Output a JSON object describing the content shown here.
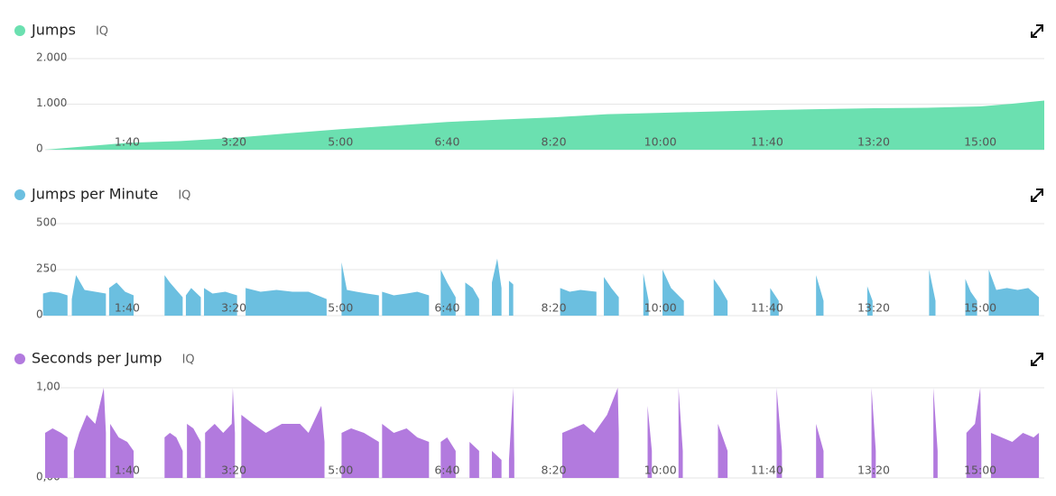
{
  "chart_data": [
    {
      "type": "area",
      "subtitle": "IQ",
      "x": [
        23,
        100,
        150,
        200,
        250,
        300,
        350,
        400,
        450,
        500,
        550,
        600,
        650,
        700,
        750,
        800,
        850,
        900,
        930,
        960
      ],
      "series": [
        {
          "name": "Jumps",
          "color": "#6be0b0",
          "values": [
            0,
            150,
            190,
            260,
            360,
            450,
            530,
            610,
            660,
            710,
            780,
            810,
            840,
            870,
            890,
            910,
            920,
            950,
            1010,
            1080
          ]
        }
      ],
      "xlim": [
        23,
        960
      ],
      "xticks": [
        {
          "value": 100,
          "label": "1:40"
        },
        {
          "value": 200,
          "label": "3:20"
        },
        {
          "value": 300,
          "label": "5:00"
        },
        {
          "value": 400,
          "label": "6:40"
        },
        {
          "value": 500,
          "label": "8:20"
        },
        {
          "value": 600,
          "label": "10:00"
        },
        {
          "value": 700,
          "label": "11:40"
        },
        {
          "value": 800,
          "label": "13:20"
        },
        {
          "value": 900,
          "label": "15:00"
        }
      ],
      "ylim": [
        0,
        2000
      ],
      "yticks": [
        0,
        {
          "value": 1000,
          "label": "1.000"
        },
        {
          "value": 2000,
          "label": "2.000"
        }
      ],
      "grid": true
    },
    {
      "type": "area",
      "subtitle": "IQ",
      "x": [
        21,
        28,
        36,
        44,
        46,
        48,
        52,
        60,
        70,
        80,
        81,
        83,
        90,
        98,
        106,
        120,
        135,
        140,
        146,
        152,
        153,
        155,
        160,
        169,
        170,
        172,
        180,
        192,
        203,
        207,
        211,
        225,
        240,
        255,
        270,
        287,
        294,
        301,
        306,
        315,
        325,
        336,
        337,
        339,
        350,
        362,
        372,
        383,
        388,
        394,
        400,
        408,
        412,
        417,
        424,
        430,
        436,
        442,
        447,
        451,
        454,
        458,
        462,
        480,
        506,
        515,
        525,
        540,
        544,
        547,
        554,
        561,
        570,
        584,
        589,
        595,
        602,
        610,
        622,
        630,
        650,
        656,
        663,
        680,
        703,
        711,
        725,
        746,
        753,
        770,
        794,
        799,
        825,
        852,
        858,
        870,
        886,
        891,
        897,
        902,
        908,
        915,
        925,
        935,
        945,
        955
      ],
      "series": [
        {
          "name": "Jumps per Minute",
          "color": "#6bbfe0",
          "values": [
            120,
            130,
            125,
            110,
            null,
            90,
            220,
            140,
            130,
            120,
            null,
            150,
            180,
            130,
            110,
            null,
            220,
            180,
            140,
            100,
            null,
            110,
            150,
            100,
            null,
            150,
            120,
            130,
            110,
            null,
            150,
            130,
            140,
            130,
            130,
            90,
            null,
            290,
            140,
            130,
            120,
            110,
            null,
            130,
            110,
            120,
            130,
            110,
            null,
            250,
            180,
            100,
            null,
            180,
            150,
            90,
            null,
            180,
            310,
            150,
            null,
            190,
            170,
            null,
            150,
            130,
            140,
            130,
            null,
            210,
            150,
            100,
            null,
            230,
            80,
            null,
            250,
            150,
            80,
            null,
            200,
            150,
            80,
            null,
            150,
            80,
            null,
            220,
            80,
            null,
            160,
            80,
            null,
            250,
            80,
            null,
            200,
            130,
            80,
            null,
            250,
            140,
            150,
            140,
            150,
            100
          ]
        }
      ],
      "xlim": [
        23,
        960
      ],
      "xticks": [
        {
          "value": 100,
          "label": "1:40"
        },
        {
          "value": 200,
          "label": "3:20"
        },
        {
          "value": 300,
          "label": "5:00"
        },
        {
          "value": 400,
          "label": "6:40"
        },
        {
          "value": 500,
          "label": "8:20"
        },
        {
          "value": 600,
          "label": "10:00"
        },
        {
          "value": 700,
          "label": "11:40"
        },
        {
          "value": 800,
          "label": "13:20"
        },
        {
          "value": 900,
          "label": "15:00"
        }
      ],
      "ylim": [
        0,
        500
      ],
      "yticks": [
        0,
        250,
        500
      ],
      "grid": true
    },
    {
      "type": "area",
      "subtitle": "IQ",
      "x": [
        23,
        30,
        38,
        44,
        46,
        50,
        55,
        62,
        70,
        78,
        80,
        81,
        84,
        92,
        100,
        106,
        120,
        135,
        140,
        146,
        152,
        154,
        156,
        162,
        169,
        171,
        173,
        182,
        190,
        198,
        199,
        201,
        204,
        207,
        218,
        230,
        245,
        262,
        270,
        282,
        285,
        294,
        301,
        310,
        322,
        336,
        337,
        339,
        350,
        362,
        372,
        383,
        388,
        394,
        400,
        408,
        420,
        421,
        430,
        440,
        442,
        451,
        455,
        458,
        462,
        463,
        485,
        508,
        518,
        528,
        538,
        550,
        560,
        561,
        575,
        588,
        592,
        615,
        617,
        621,
        650,
        654,
        663,
        700,
        709,
        714,
        740,
        746,
        753,
        795,
        798,
        802,
        850,
        856,
        860,
        870,
        887,
        895,
        900,
        901,
        906,
        910,
        920,
        930,
        940,
        950,
        955
      ],
      "series": [
        {
          "name": "Seconds per Jump",
          "color": "#b27ade",
          "values": [
            0.5,
            0.55,
            0.5,
            0.45,
            null,
            0.3,
            0.5,
            0.7,
            0.6,
            1.0,
            0.5,
            null,
            0.6,
            0.45,
            0.4,
            0.3,
            null,
            0.45,
            0.5,
            0.45,
            0.3,
            null,
            0.6,
            0.55,
            0.4,
            null,
            0.5,
            0.6,
            0.5,
            0.6,
            1.0,
            0.5,
            null,
            0.7,
            0.6,
            0.5,
            0.6,
            0.6,
            0.5,
            0.8,
            0.4,
            null,
            0.5,
            0.55,
            0.5,
            0.4,
            null,
            0.6,
            0.5,
            0.55,
            0.45,
            0.4,
            null,
            0.4,
            0.45,
            0.3,
            null,
            0.4,
            0.3,
            null,
            0.3,
            0.2,
            null,
            0.2,
            1.0,
            0.2,
            null,
            0.5,
            0.55,
            0.6,
            0.5,
            0.7,
            1.0,
            0.5,
            null,
            0.8,
            0.3,
            null,
            1.0,
            0.3,
            null,
            0.6,
            0.3,
            null,
            1.0,
            0.3,
            null,
            0.6,
            0.3,
            null,
            1.0,
            0.3,
            null,
            1.0,
            0.3,
            null,
            0.5,
            0.6,
            1.0,
            0.3,
            null,
            0.5,
            0.45,
            0.4,
            0.5,
            0.45,
            0.5
          ]
        }
      ],
      "xlim": [
        23,
        960
      ],
      "xticks": [
        {
          "value": 100,
          "label": "1:40"
        },
        {
          "value": 200,
          "label": "3:20"
        },
        {
          "value": 300,
          "label": "5:00"
        },
        {
          "value": 400,
          "label": "6:40"
        },
        {
          "value": 500,
          "label": "8:20"
        },
        {
          "value": 600,
          "label": "10:00"
        },
        {
          "value": 700,
          "label": "11:40"
        },
        {
          "value": 800,
          "label": "13:20"
        },
        {
          "value": 900,
          "label": "15:00"
        }
      ],
      "ylim": [
        0,
        1
      ],
      "yticks": [
        {
          "value": 0,
          "label": "0,00"
        },
        {
          "value": 1,
          "label": "1,00"
        }
      ],
      "grid": true
    }
  ]
}
